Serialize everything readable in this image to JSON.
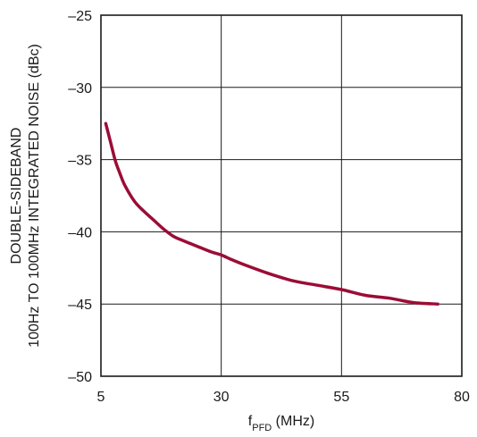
{
  "chart_data": {
    "type": "line",
    "xlabel_main": "f",
    "xlabel_sub": "PFD",
    "xlabel_unit": " (MHz)",
    "ylabel_line1": "DOUBLE-SIDEBAND",
    "ylabel_line2": "100Hz TO 100MHz INTEGRATED NOISE (dBc)",
    "xlim": [
      5,
      80
    ],
    "ylim": [
      -50,
      -25
    ],
    "x_ticks": [
      5,
      30,
      55,
      80
    ],
    "y_ticks": [
      -25,
      -30,
      -35,
      -40,
      -45,
      -50
    ],
    "x_tick_labels": [
      "5",
      "30",
      "55",
      "80"
    ],
    "y_tick_labels": [
      "–25",
      "–30",
      "–35",
      "–40",
      "–45",
      "–50"
    ],
    "grid": true,
    "series": [
      {
        "color": "#9b0d36",
        "x": [
          6,
          7,
          8,
          9,
          10,
          12,
          14,
          16,
          18,
          20,
          22,
          25,
          28,
          30,
          32,
          35,
          40,
          45,
          50,
          55,
          60,
          65,
          70,
          75
        ],
        "y": [
          -32.5,
          -33.8,
          -35.1,
          -36.0,
          -36.8,
          -37.9,
          -38.6,
          -39.2,
          -39.8,
          -40.3,
          -40.6,
          -41.0,
          -41.4,
          -41.6,
          -41.9,
          -42.3,
          -42.9,
          -43.4,
          -43.7,
          -44.0,
          -44.4,
          -44.6,
          -44.9,
          -45.0
        ]
      }
    ]
  }
}
